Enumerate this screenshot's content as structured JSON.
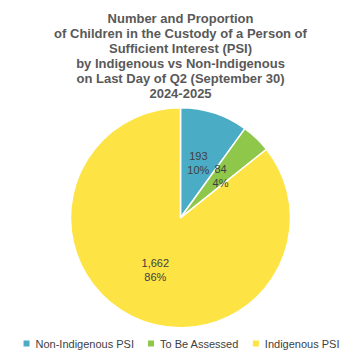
{
  "chart_data": {
    "type": "pie",
    "title": "Number and Proportion\nof Children in the Custody of a Person of\nSufficient Interest (PSI)\nby Indigenous vs Non-Indigenous\non Last Day of Q2 (September 30)\n2024-2025",
    "categories": [
      "Non-Indigenous PSI",
      "To Be Assessed",
      "Indigenous PSI"
    ],
    "values": [
      193,
      84,
      1662
    ],
    "value_labels": [
      "193\n10%",
      "84\n4%",
      "1,662\n86%"
    ],
    "colors": [
      "#4bacc6",
      "#8fc74a",
      "#fde444"
    ],
    "data_labels": true,
    "legend": "bottom"
  }
}
